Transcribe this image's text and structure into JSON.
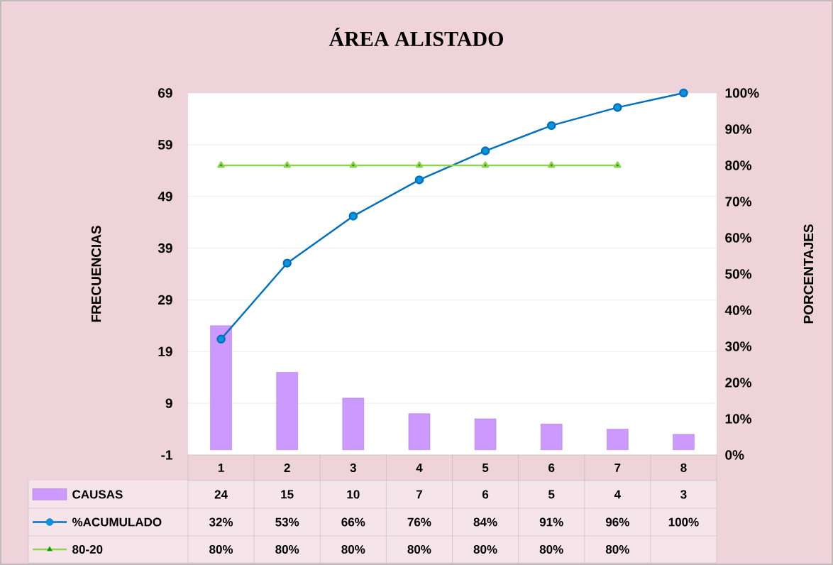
{
  "chart_data": {
    "type": "bar",
    "title": "ÁREA ALISTADO",
    "ylabel": "FRECUENCIAS",
    "y2label": "PORCENTAJES",
    "categories": [
      "1",
      "2",
      "3",
      "4",
      "5",
      "6",
      "7",
      "8"
    ],
    "series": [
      {
        "name": "CAUSAS",
        "color": "#cc99ff",
        "values": [
          24,
          15,
          10,
          7,
          6,
          5,
          4,
          3
        ],
        "value_labels": [
          "24",
          "15",
          "10",
          "7",
          "6",
          "5",
          "4",
          "3"
        ]
      },
      {
        "name": "%ACUMULADO",
        "type": "line",
        "axis": "y2",
        "color": "#0070c0",
        "marker": "circle",
        "values": [
          32,
          53,
          66,
          76,
          84,
          91,
          96,
          100
        ],
        "value_labels": [
          "32%",
          "53%",
          "66%",
          "76%",
          "84%",
          "91%",
          "96%",
          "100%"
        ]
      },
      {
        "name": "80-20",
        "type": "line",
        "axis": "y2",
        "color": "#92d050",
        "marker": "triangle",
        "values": [
          80,
          80,
          80,
          80,
          80,
          80,
          80,
          null
        ],
        "value_labels": [
          "80%",
          "80%",
          "80%",
          "80%",
          "80%",
          "80%",
          "80%",
          null
        ]
      }
    ],
    "ylim": [
      -1,
      69
    ],
    "yticks": [
      -1,
      9,
      19,
      29,
      39,
      49,
      59,
      69
    ],
    "y2lim": [
      0,
      100
    ],
    "y2ticks": [
      {
        "value": 0,
        "label": "0%"
      },
      {
        "value": 10,
        "label": "10%"
      },
      {
        "value": 20,
        "label": "20%"
      },
      {
        "value": 30,
        "label": "30%"
      },
      {
        "value": 40,
        "label": "40%"
      },
      {
        "value": 50,
        "label": "50%"
      },
      {
        "value": 60,
        "label": "60%"
      },
      {
        "value": 70,
        "label": "70%"
      },
      {
        "value": 80,
        "label": "80%"
      },
      {
        "value": 90,
        "label": "90%"
      },
      {
        "value": 100,
        "label": "100%"
      }
    ],
    "grid": "y",
    "legend": "bottom",
    "line_style": "solid"
  }
}
